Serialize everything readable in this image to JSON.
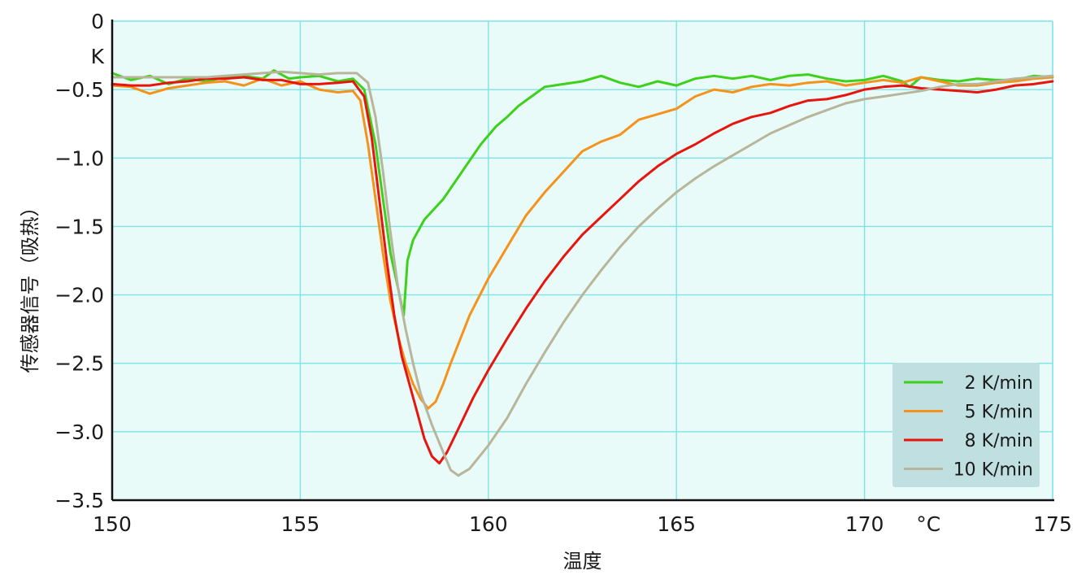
{
  "chart_data": {
    "type": "line",
    "xlabel": "温度",
    "ylabel": "传感器信号（吸热）",
    "x_unit": "°C",
    "y_unit": "K",
    "xlim": [
      150,
      175
    ],
    "ylim": [
      -3.5,
      0
    ],
    "x_ticks": [
      150,
      155,
      160,
      165,
      170,
      175
    ],
    "y_ticks": [
      0,
      -0.5,
      -1.0,
      -1.5,
      -2.0,
      -2.5,
      -3.0,
      -3.5
    ],
    "y_tick_labels": [
      "0",
      "−0.5",
      "−1.0",
      "−1.5",
      "−2.0",
      "−2.5",
      "−3.0",
      "−3.5"
    ],
    "grid": true,
    "legend_position": "bottom-right",
    "colors": {
      "plot_background": "#e8fbf9",
      "grid": "#7fe3e6",
      "axis": "#111111",
      "legend_background": "#bfdfe0"
    },
    "series": [
      {
        "name": "2 K/min",
        "color": "#3fd01c",
        "points": [
          [
            150,
            -0.38
          ],
          [
            150.5,
            -0.43
          ],
          [
            151,
            -0.4
          ],
          [
            151.5,
            -0.46
          ],
          [
            152,
            -0.42
          ],
          [
            152.5,
            -0.44
          ],
          [
            153,
            -0.41
          ],
          [
            153.5,
            -0.4
          ],
          [
            154,
            -0.42
          ],
          [
            154.3,
            -0.36
          ],
          [
            154.7,
            -0.42
          ],
          [
            155,
            -0.41
          ],
          [
            155.5,
            -0.4
          ],
          [
            156,
            -0.44
          ],
          [
            156.4,
            -0.42
          ],
          [
            156.7,
            -0.5
          ],
          [
            157,
            -0.9
          ],
          [
            157.2,
            -1.3
          ],
          [
            157.4,
            -1.7
          ],
          [
            157.6,
            -1.95
          ],
          [
            157.75,
            -2.15
          ],
          [
            157.85,
            -1.75
          ],
          [
            158.0,
            -1.6
          ],
          [
            158.3,
            -1.45
          ],
          [
            158.8,
            -1.3
          ],
          [
            159.3,
            -1.1
          ],
          [
            159.8,
            -0.9
          ],
          [
            160.2,
            -0.77
          ],
          [
            160.5,
            -0.7
          ],
          [
            160.8,
            -0.62
          ],
          [
            161.2,
            -0.54
          ],
          [
            161.5,
            -0.48
          ],
          [
            162,
            -0.46
          ],
          [
            162.5,
            -0.44
          ],
          [
            163,
            -0.4
          ],
          [
            163.5,
            -0.45
          ],
          [
            164,
            -0.48
          ],
          [
            164.5,
            -0.44
          ],
          [
            165,
            -0.47
          ],
          [
            165.5,
            -0.42
          ],
          [
            166,
            -0.4
          ],
          [
            166.5,
            -0.42
          ],
          [
            167,
            -0.4
          ],
          [
            167.5,
            -0.43
          ],
          [
            168,
            -0.4
          ],
          [
            168.5,
            -0.39
          ],
          [
            169,
            -0.42
          ],
          [
            169.5,
            -0.44
          ],
          [
            170,
            -0.43
          ],
          [
            170.5,
            -0.4
          ],
          [
            171,
            -0.44
          ],
          [
            171.2,
            -0.48
          ],
          [
            171.5,
            -0.41
          ],
          [
            172,
            -0.43
          ],
          [
            172.5,
            -0.44
          ],
          [
            173,
            -0.42
          ],
          [
            173.5,
            -0.43
          ],
          [
            174,
            -0.43
          ],
          [
            174.5,
            -0.4
          ],
          [
            175,
            -0.41
          ]
        ]
      },
      {
        "name": "5 K/min",
        "color": "#f5921c",
        "points": [
          [
            150,
            -0.47
          ],
          [
            150.5,
            -0.48
          ],
          [
            151,
            -0.53
          ],
          [
            151.5,
            -0.49
          ],
          [
            152,
            -0.47
          ],
          [
            152.5,
            -0.45
          ],
          [
            153,
            -0.44
          ],
          [
            153.5,
            -0.47
          ],
          [
            154,
            -0.42
          ],
          [
            154.5,
            -0.47
          ],
          [
            155,
            -0.44
          ],
          [
            155.5,
            -0.5
          ],
          [
            156,
            -0.52
          ],
          [
            156.4,
            -0.51
          ],
          [
            156.6,
            -0.58
          ],
          [
            156.8,
            -0.9
          ],
          [
            157,
            -1.3
          ],
          [
            157.2,
            -1.7
          ],
          [
            157.4,
            -2.05
          ],
          [
            157.6,
            -2.3
          ],
          [
            157.8,
            -2.5
          ],
          [
            158.0,
            -2.65
          ],
          [
            158.2,
            -2.76
          ],
          [
            158.4,
            -2.83
          ],
          [
            158.6,
            -2.78
          ],
          [
            158.8,
            -2.65
          ],
          [
            159,
            -2.5
          ],
          [
            159.5,
            -2.15
          ],
          [
            160,
            -1.88
          ],
          [
            160.5,
            -1.65
          ],
          [
            161,
            -1.42
          ],
          [
            161.5,
            -1.25
          ],
          [
            162,
            -1.1
          ],
          [
            162.5,
            -0.95
          ],
          [
            163,
            -0.88
          ],
          [
            163.5,
            -0.83
          ],
          [
            164,
            -0.72
          ],
          [
            164.5,
            -0.68
          ],
          [
            165,
            -0.64
          ],
          [
            165.5,
            -0.55
          ],
          [
            166,
            -0.5
          ],
          [
            166.5,
            -0.52
          ],
          [
            167,
            -0.48
          ],
          [
            167.5,
            -0.46
          ],
          [
            168,
            -0.47
          ],
          [
            168.5,
            -0.45
          ],
          [
            169,
            -0.44
          ],
          [
            169.5,
            -0.47
          ],
          [
            170,
            -0.45
          ],
          [
            170.5,
            -0.43
          ],
          [
            171,
            -0.45
          ],
          [
            171.5,
            -0.41
          ],
          [
            172,
            -0.44
          ],
          [
            172.5,
            -0.47
          ],
          [
            173,
            -0.47
          ],
          [
            173.5,
            -0.45
          ],
          [
            174,
            -0.44
          ],
          [
            174.5,
            -0.42
          ],
          [
            175,
            -0.41
          ]
        ]
      },
      {
        "name": "8 K/min",
        "color": "#e8140e",
        "points": [
          [
            150,
            -0.46
          ],
          [
            150.5,
            -0.47
          ],
          [
            151,
            -0.47
          ],
          [
            151.5,
            -0.45
          ],
          [
            152,
            -0.44
          ],
          [
            152.5,
            -0.42
          ],
          [
            153,
            -0.42
          ],
          [
            153.5,
            -0.41
          ],
          [
            154,
            -0.43
          ],
          [
            154.5,
            -0.43
          ],
          [
            155,
            -0.46
          ],
          [
            155.5,
            -0.46
          ],
          [
            156,
            -0.45
          ],
          [
            156.4,
            -0.44
          ],
          [
            156.7,
            -0.55
          ],
          [
            156.9,
            -0.85
          ],
          [
            157.1,
            -1.3
          ],
          [
            157.3,
            -1.75
          ],
          [
            157.5,
            -2.15
          ],
          [
            157.7,
            -2.45
          ],
          [
            157.9,
            -2.65
          ],
          [
            158.1,
            -2.85
          ],
          [
            158.3,
            -3.05
          ],
          [
            158.5,
            -3.18
          ],
          [
            158.7,
            -3.23
          ],
          [
            158.9,
            -3.15
          ],
          [
            159.2,
            -2.98
          ],
          [
            159.6,
            -2.75
          ],
          [
            160,
            -2.55
          ],
          [
            160.5,
            -2.32
          ],
          [
            161,
            -2.1
          ],
          [
            161.5,
            -1.9
          ],
          [
            162,
            -1.72
          ],
          [
            162.5,
            -1.56
          ],
          [
            163,
            -1.43
          ],
          [
            163.5,
            -1.3
          ],
          [
            164,
            -1.17
          ],
          [
            164.5,
            -1.06
          ],
          [
            165,
            -0.97
          ],
          [
            165.5,
            -0.9
          ],
          [
            166,
            -0.82
          ],
          [
            166.5,
            -0.75
          ],
          [
            167,
            -0.7
          ],
          [
            167.5,
            -0.67
          ],
          [
            168,
            -0.62
          ],
          [
            168.5,
            -0.58
          ],
          [
            169,
            -0.57
          ],
          [
            169.5,
            -0.54
          ],
          [
            170,
            -0.5
          ],
          [
            170.5,
            -0.48
          ],
          [
            171,
            -0.47
          ],
          [
            171.5,
            -0.49
          ],
          [
            172,
            -0.5
          ],
          [
            172.5,
            -0.51
          ],
          [
            173,
            -0.52
          ],
          [
            173.5,
            -0.5
          ],
          [
            174,
            -0.47
          ],
          [
            174.5,
            -0.46
          ],
          [
            175,
            -0.44
          ]
        ]
      },
      {
        "name": "10 K/min",
        "color": "#b8b59b",
        "points": [
          [
            150,
            -0.41
          ],
          [
            150.5,
            -0.41
          ],
          [
            151,
            -0.41
          ],
          [
            151.5,
            -0.41
          ],
          [
            152,
            -0.41
          ],
          [
            152.5,
            -0.41
          ],
          [
            153,
            -0.4
          ],
          [
            153.5,
            -0.39
          ],
          [
            154,
            -0.38
          ],
          [
            154.5,
            -0.37
          ],
          [
            155,
            -0.38
          ],
          [
            155.5,
            -0.39
          ],
          [
            156,
            -0.38
          ],
          [
            156.5,
            -0.38
          ],
          [
            156.8,
            -0.45
          ],
          [
            157.0,
            -0.7
          ],
          [
            157.2,
            -1.1
          ],
          [
            157.4,
            -1.55
          ],
          [
            157.6,
            -1.95
          ],
          [
            157.8,
            -2.25
          ],
          [
            158.0,
            -2.5
          ],
          [
            158.2,
            -2.72
          ],
          [
            158.5,
            -2.95
          ],
          [
            158.8,
            -3.15
          ],
          [
            159.0,
            -3.28
          ],
          [
            159.2,
            -3.32
          ],
          [
            159.5,
            -3.27
          ],
          [
            160,
            -3.1
          ],
          [
            160.5,
            -2.9
          ],
          [
            161,
            -2.65
          ],
          [
            161.5,
            -2.42
          ],
          [
            162,
            -2.2
          ],
          [
            162.5,
            -2.0
          ],
          [
            163,
            -1.82
          ],
          [
            163.5,
            -1.65
          ],
          [
            164,
            -1.5
          ],
          [
            164.5,
            -1.37
          ],
          [
            165,
            -1.25
          ],
          [
            165.5,
            -1.15
          ],
          [
            166,
            -1.06
          ],
          [
            166.5,
            -0.98
          ],
          [
            167,
            -0.9
          ],
          [
            167.5,
            -0.82
          ],
          [
            168,
            -0.76
          ],
          [
            168.5,
            -0.7
          ],
          [
            169,
            -0.65
          ],
          [
            169.5,
            -0.6
          ],
          [
            170,
            -0.57
          ],
          [
            170.5,
            -0.55
          ],
          [
            171,
            -0.53
          ],
          [
            171.5,
            -0.51
          ],
          [
            172,
            -0.48
          ],
          [
            172.5,
            -0.46
          ],
          [
            173,
            -0.46
          ],
          [
            173.5,
            -0.44
          ],
          [
            174,
            -0.42
          ],
          [
            174.5,
            -0.41
          ],
          [
            175,
            -0.4
          ]
        ]
      }
    ]
  }
}
